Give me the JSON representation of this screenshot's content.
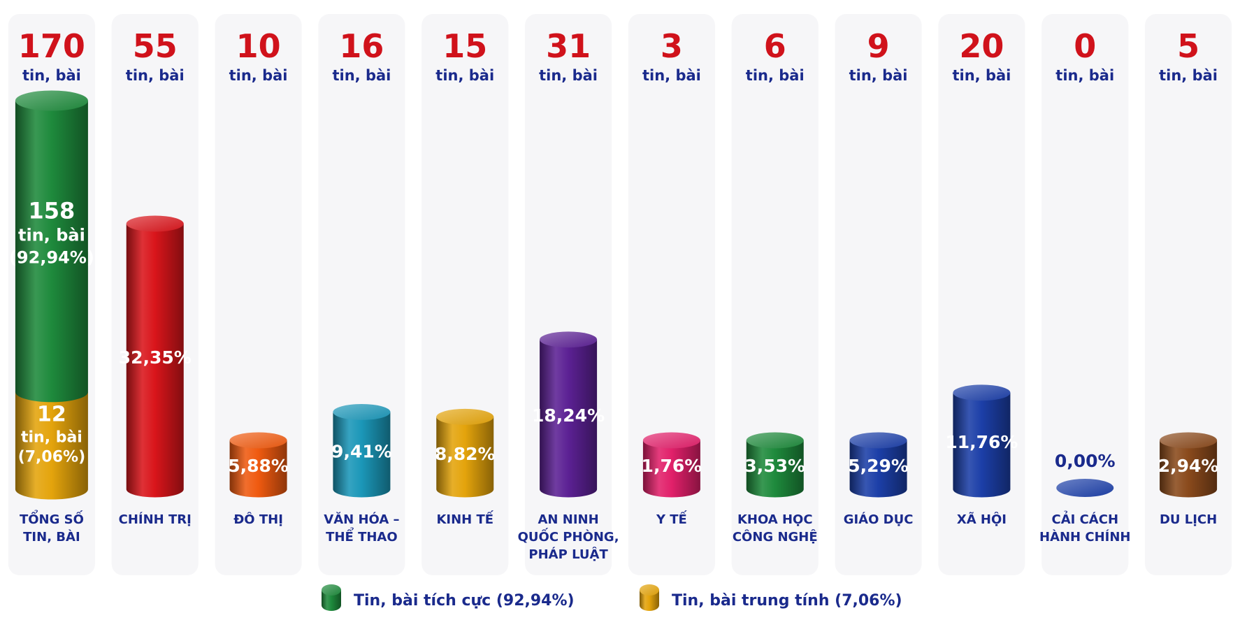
{
  "chart_data": {
    "type": "bar",
    "unit_label": "tin, bài",
    "ylim": [
      0,
      170
    ],
    "colors": {
      "positive": "#1e8a3c",
      "neutral": "#e4a40c",
      "number": "#d0121b",
      "unit": "#1a2a8c",
      "category": "#1a2a8c",
      "panel": "#f6f6f8"
    },
    "total": {
      "category": [
        "TỔNG SỐ",
        "TIN, BÀI"
      ],
      "value": 170,
      "positive": {
        "value": 158,
        "value_label": "158",
        "unit": "tin, bài",
        "pct_label": "(92,94%)"
      },
      "neutral": {
        "value": 12,
        "value_label": "12",
        "unit": "tin, bài",
        "pct_label": "(7,06%)"
      }
    },
    "categories": [
      {
        "label": [
          "CHÍNH TRỊ"
        ],
        "value": 55,
        "pct_label": "32,35%",
        "color": "#d9151b"
      },
      {
        "label": [
          "ĐÔ THỊ"
        ],
        "value": 10,
        "pct_label": "5,88%",
        "color": "#ef5a10"
      },
      {
        "label": [
          "VĂN HÓA –",
          "THỂ THAO"
        ],
        "value": 16,
        "pct_label": "9,41%",
        "color": "#1b97b8"
      },
      {
        "label": [
          "KINH TẾ"
        ],
        "value": 15,
        "pct_label": "8,82%",
        "color": "#e4a40c"
      },
      {
        "label": [
          "AN NINH",
          "QUỐC PHÒNG,",
          "PHÁP LUẬT"
        ],
        "value": 31,
        "pct_label": "18,24%",
        "color": "#5c2194"
      },
      {
        "label": [
          "Y TẾ"
        ],
        "value": 3,
        "pct_label": "1,76%",
        "color": "#e1206a"
      },
      {
        "label": [
          "KHOA HỌC",
          "CÔNG NGHỆ"
        ],
        "value": 6,
        "pct_label": "3,53%",
        "color": "#1e8a3c"
      },
      {
        "label": [
          "GIÁO DỤC"
        ],
        "value": 9,
        "pct_label": "5,29%",
        "color": "#1c3fa8"
      },
      {
        "label": [
          "XÃ HỘI"
        ],
        "value": 20,
        "pct_label": "11,76%",
        "color": "#1c3fa8"
      },
      {
        "label": [
          "CẢI CÁCH",
          "HÀNH CHÍNH"
        ],
        "value": 0,
        "pct_label": "0,00%",
        "color": "#1c3fa8"
      },
      {
        "label": [
          "DU LỊCH"
        ],
        "value": 5,
        "pct_label": "2,94%",
        "color": "#8a4a1c"
      }
    ],
    "legend": [
      {
        "label": "Tin, bài tích cực (92,94%)",
        "color": "#1e8a3c"
      },
      {
        "label": "Tin, bài trung tính (7,06%)",
        "color": "#e4a40c"
      }
    ]
  }
}
